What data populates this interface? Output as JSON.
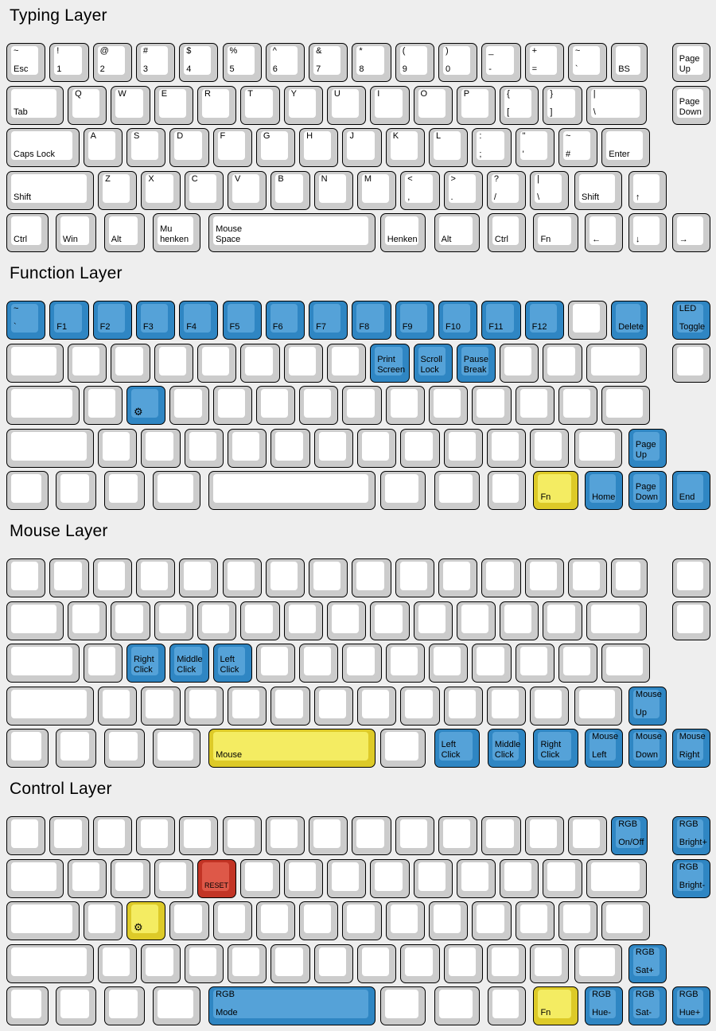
{
  "background": "#eeeeee",
  "icons": {
    "gear": "⚙"
  },
  "colors": {
    "w": {
      "base": "#cccccc",
      "cap": "#ffffff"
    },
    "b": {
      "base": "#2f86c3",
      "cap": "#55a2d8"
    },
    "y": {
      "base": "#ddca28",
      "cap": "#f4ec62"
    },
    "r": {
      "base": "#c23425",
      "cap": "#de5848"
    }
  },
  "layers": [
    {
      "title": "Typing Layer",
      "rows": [
        [
          {
            "c": "w",
            "t": "~",
            "b": "Esc"
          },
          {
            "c": "w",
            "t": "!",
            "b": "1"
          },
          {
            "c": "w",
            "t": "@",
            "b": "2"
          },
          {
            "c": "w",
            "t": "#",
            "b": "3"
          },
          {
            "c": "w",
            "t": "$",
            "b": "4"
          },
          {
            "c": "w",
            "t": "%",
            "b": "5"
          },
          {
            "c": "w",
            "t": "^",
            "b": "6"
          },
          {
            "c": "w",
            "t": "&",
            "b": "7"
          },
          {
            "c": "w",
            "t": "*",
            "b": "8"
          },
          {
            "c": "w",
            "t": "(",
            "b": "9"
          },
          {
            "c": "w",
            "t": ")",
            "b": "0"
          },
          {
            "c": "w",
            "t": "_",
            "b": "-"
          },
          {
            "c": "w",
            "t": "+",
            "b": "="
          },
          {
            "c": "w",
            "t": "~",
            "b": "`"
          },
          {
            "c": "w",
            "b": "BS"
          }
        ],
        [
          {
            "c": "w",
            "b": "Tab"
          },
          {
            "c": "w",
            "t": "Q"
          },
          {
            "c": "w",
            "t": "W"
          },
          {
            "c": "w",
            "t": "E"
          },
          {
            "c": "w",
            "t": "R"
          },
          {
            "c": "w",
            "t": "T"
          },
          {
            "c": "w",
            "t": "Y"
          },
          {
            "c": "w",
            "t": "U"
          },
          {
            "c": "w",
            "t": "I"
          },
          {
            "c": "w",
            "t": "O"
          },
          {
            "c": "w",
            "t": "P"
          },
          {
            "c": "w",
            "t": "{",
            "b": "["
          },
          {
            "c": "w",
            "t": "}",
            "b": "]"
          },
          {
            "c": "w",
            "t": "|",
            "b": "\\"
          }
        ],
        [
          {
            "c": "w",
            "b": "Caps Lock"
          },
          {
            "c": "w",
            "t": "A"
          },
          {
            "c": "w",
            "t": "S"
          },
          {
            "c": "w",
            "t": "D"
          },
          {
            "c": "w",
            "t": "F"
          },
          {
            "c": "w",
            "t": "G"
          },
          {
            "c": "w",
            "t": "H"
          },
          {
            "c": "w",
            "t": "J"
          },
          {
            "c": "w",
            "t": "K"
          },
          {
            "c": "w",
            "t": "L"
          },
          {
            "c": "w",
            "t": ":",
            "b": ";"
          },
          {
            "c": "w",
            "t": "\"",
            "b": "'"
          },
          {
            "c": "w",
            "t": "~",
            "b": "#"
          },
          {
            "c": "w",
            "b": "Enter"
          }
        ],
        [
          {
            "c": "w",
            "b": "Shift"
          },
          {
            "c": "w",
            "t": "Z"
          },
          {
            "c": "w",
            "t": "X"
          },
          {
            "c": "w",
            "t": "C"
          },
          {
            "c": "w",
            "t": "V"
          },
          {
            "c": "w",
            "t": "B"
          },
          {
            "c": "w",
            "t": "N"
          },
          {
            "c": "w",
            "t": "M"
          },
          {
            "c": "w",
            "t": "<",
            "b": ","
          },
          {
            "c": "w",
            "t": ">",
            "b": "."
          },
          {
            "c": "w",
            "t": "?",
            "b": "/"
          },
          {
            "c": "w",
            "t": "|",
            "b": "\\"
          },
          {
            "c": "w",
            "b": "Shift"
          },
          {
            "c": "w",
            "b": "↑"
          }
        ],
        [
          {
            "c": "w",
            "b": "Ctrl"
          },
          {
            "c": "w",
            "b": "Win"
          },
          {
            "c": "w",
            "b": "Alt"
          },
          {
            "c": "w",
            "b": "Mu\nhenken"
          },
          {
            "c": "w",
            "b": "Mouse\nSpace"
          },
          {
            "c": "w",
            "b": "Henken"
          },
          {
            "c": "w",
            "b": "Alt"
          },
          {
            "c": "w",
            "b": "Ctrl"
          },
          {
            "c": "w",
            "b": "Fn"
          },
          {
            "c": "w",
            "b": "←"
          },
          {
            "c": "w",
            "b": "↓"
          },
          {
            "c": "w",
            "b": "→"
          }
        ]
      ],
      "side": [
        {
          "c": "w",
          "b": "Page\nUp"
        },
        {
          "c": "w",
          "b": "Page\nDown"
        }
      ]
    },
    {
      "title": "Function Layer",
      "rows": [
        [
          {
            "c": "b",
            "t": "~",
            "b": "`"
          },
          {
            "c": "b",
            "b": "F1"
          },
          {
            "c": "b",
            "b": "F2"
          },
          {
            "c": "b",
            "b": "F3"
          },
          {
            "c": "b",
            "b": "F4"
          },
          {
            "c": "b",
            "b": "F5"
          },
          {
            "c": "b",
            "b": "F6"
          },
          {
            "c": "b",
            "b": "F7"
          },
          {
            "c": "b",
            "b": "F8"
          },
          {
            "c": "b",
            "b": "F9"
          },
          {
            "c": "b",
            "b": "F10"
          },
          {
            "c": "b",
            "b": "F11"
          },
          {
            "c": "b",
            "b": "F12"
          },
          {
            "c": "w"
          },
          {
            "c": "b",
            "b": "Delete"
          }
        ],
        [
          {
            "c": "w"
          },
          {
            "c": "w"
          },
          {
            "c": "w"
          },
          {
            "c": "w"
          },
          {
            "c": "w"
          },
          {
            "c": "w"
          },
          {
            "c": "w"
          },
          {
            "c": "w"
          },
          {
            "c": "b",
            "b": "Print\nScreen"
          },
          {
            "c": "b",
            "b": "Scroll\nLock"
          },
          {
            "c": "b",
            "b": "Pause\nBreak"
          },
          {
            "c": "w"
          },
          {
            "c": "w"
          },
          {
            "c": "w"
          }
        ],
        [
          {
            "c": "w"
          },
          {
            "c": "w"
          },
          {
            "c": "b",
            "ic": "gear"
          },
          {
            "c": "w"
          },
          {
            "c": "w"
          },
          {
            "c": "w"
          },
          {
            "c": "w"
          },
          {
            "c": "w"
          },
          {
            "c": "w"
          },
          {
            "c": "w"
          },
          {
            "c": "w"
          },
          {
            "c": "w"
          },
          {
            "c": "w"
          },
          {
            "c": "w"
          }
        ],
        [
          {
            "c": "w"
          },
          {
            "c": "w"
          },
          {
            "c": "w"
          },
          {
            "c": "w"
          },
          {
            "c": "w"
          },
          {
            "c": "w"
          },
          {
            "c": "w"
          },
          {
            "c": "w"
          },
          {
            "c": "w"
          },
          {
            "c": "w"
          },
          {
            "c": "w"
          },
          {
            "c": "w"
          },
          {
            "c": "w"
          },
          {
            "c": "b",
            "b": "Page\nUp"
          }
        ],
        [
          {
            "c": "w"
          },
          {
            "c": "w"
          },
          {
            "c": "w"
          },
          {
            "c": "w"
          },
          {
            "c": "w"
          },
          {
            "c": "w"
          },
          {
            "c": "w"
          },
          {
            "c": "w"
          },
          {
            "c": "y",
            "b": "Fn"
          },
          {
            "c": "b",
            "b": "Home"
          },
          {
            "c": "b",
            "b": "Page\nDown"
          },
          {
            "c": "b",
            "b": "End"
          }
        ]
      ],
      "side": [
        {
          "c": "b",
          "t": "LED",
          "b": "Toggle"
        },
        {
          "c": "w"
        }
      ]
    },
    {
      "title": "Mouse Layer",
      "rows": [
        [
          {
            "c": "w"
          },
          {
            "c": "w"
          },
          {
            "c": "w"
          },
          {
            "c": "w"
          },
          {
            "c": "w"
          },
          {
            "c": "w"
          },
          {
            "c": "w"
          },
          {
            "c": "w"
          },
          {
            "c": "w"
          },
          {
            "c": "w"
          },
          {
            "c": "w"
          },
          {
            "c": "w"
          },
          {
            "c": "w"
          },
          {
            "c": "w"
          },
          {
            "c": "w"
          }
        ],
        [
          {
            "c": "w"
          },
          {
            "c": "w"
          },
          {
            "c": "w"
          },
          {
            "c": "w"
          },
          {
            "c": "w"
          },
          {
            "c": "w"
          },
          {
            "c": "w"
          },
          {
            "c": "w"
          },
          {
            "c": "w"
          },
          {
            "c": "w"
          },
          {
            "c": "w"
          },
          {
            "c": "w"
          },
          {
            "c": "w"
          },
          {
            "c": "w"
          }
        ],
        [
          {
            "c": "w"
          },
          {
            "c": "w"
          },
          {
            "c": "b",
            "b": "Right\nClick"
          },
          {
            "c": "b",
            "b": "Middle\nClick"
          },
          {
            "c": "b",
            "b": "Left\nClick"
          },
          {
            "c": "w"
          },
          {
            "c": "w"
          },
          {
            "c": "w"
          },
          {
            "c": "w"
          },
          {
            "c": "w"
          },
          {
            "c": "w"
          },
          {
            "c": "w"
          },
          {
            "c": "w"
          },
          {
            "c": "w"
          }
        ],
        [
          {
            "c": "w"
          },
          {
            "c": "w"
          },
          {
            "c": "w"
          },
          {
            "c": "w"
          },
          {
            "c": "w"
          },
          {
            "c": "w"
          },
          {
            "c": "w"
          },
          {
            "c": "w"
          },
          {
            "c": "w"
          },
          {
            "c": "w"
          },
          {
            "c": "w"
          },
          {
            "c": "w"
          },
          {
            "c": "w"
          },
          {
            "c": "b",
            "t": "Mouse",
            "b": "Up"
          }
        ],
        [
          {
            "c": "w"
          },
          {
            "c": "w"
          },
          {
            "c": "w"
          },
          {
            "c": "w"
          },
          {
            "c": "y",
            "b": "Mouse"
          },
          {
            "c": "w"
          },
          {
            "c": "b",
            "b": "Left\nClick"
          },
          {
            "c": "b",
            "b": "Middle\nClick"
          },
          {
            "c": "b",
            "b": "Right\nClick"
          },
          {
            "c": "b",
            "t": "Mouse",
            "b": "Left"
          },
          {
            "c": "b",
            "t": "Mouse",
            "b": "Down"
          },
          {
            "c": "b",
            "t": "Mouse",
            "b": "Right"
          }
        ]
      ],
      "side": [
        {
          "c": "w"
        },
        {
          "c": "w"
        }
      ]
    },
    {
      "title": "Control Layer",
      "rows": [
        [
          {
            "c": "w"
          },
          {
            "c": "w"
          },
          {
            "c": "w"
          },
          {
            "c": "w"
          },
          {
            "c": "w"
          },
          {
            "c": "w"
          },
          {
            "c": "w"
          },
          {
            "c": "w"
          },
          {
            "c": "w"
          },
          {
            "c": "w"
          },
          {
            "c": "w"
          },
          {
            "c": "w"
          },
          {
            "c": "w"
          },
          {
            "c": "w"
          },
          {
            "c": "b",
            "t": "RGB",
            "b": "On/Off"
          }
        ],
        [
          {
            "c": "w"
          },
          {
            "c": "w"
          },
          {
            "c": "w"
          },
          {
            "c": "w"
          },
          {
            "c": "r",
            "b": "RESET",
            "s": 9
          },
          {
            "c": "w"
          },
          {
            "c": "w"
          },
          {
            "c": "w"
          },
          {
            "c": "w"
          },
          {
            "c": "w"
          },
          {
            "c": "w"
          },
          {
            "c": "w"
          },
          {
            "c": "w"
          },
          {
            "c": "w"
          }
        ],
        [
          {
            "c": "w"
          },
          {
            "c": "w"
          },
          {
            "c": "y",
            "ic": "gear"
          },
          {
            "c": "w"
          },
          {
            "c": "w"
          },
          {
            "c": "w"
          },
          {
            "c": "w"
          },
          {
            "c": "w"
          },
          {
            "c": "w"
          },
          {
            "c": "w"
          },
          {
            "c": "w"
          },
          {
            "c": "w"
          },
          {
            "c": "w"
          },
          {
            "c": "w"
          }
        ],
        [
          {
            "c": "w"
          },
          {
            "c": "w"
          },
          {
            "c": "w"
          },
          {
            "c": "w"
          },
          {
            "c": "w"
          },
          {
            "c": "w"
          },
          {
            "c": "w"
          },
          {
            "c": "w"
          },
          {
            "c": "w"
          },
          {
            "c": "w"
          },
          {
            "c": "w"
          },
          {
            "c": "w"
          },
          {
            "c": "w"
          },
          {
            "c": "b",
            "t": "RGB",
            "b": "Sat+"
          }
        ],
        [
          {
            "c": "w"
          },
          {
            "c": "w"
          },
          {
            "c": "w"
          },
          {
            "c": "w"
          },
          {
            "c": "b",
            "t": "RGB",
            "b": "Mode"
          },
          {
            "c": "w"
          },
          {
            "c": "w"
          },
          {
            "c": "w"
          },
          {
            "c": "y",
            "b": "Fn"
          },
          {
            "c": "b",
            "t": "RGB",
            "b": "Hue-"
          },
          {
            "c": "b",
            "t": "RGB",
            "b": "Sat-"
          },
          {
            "c": "b",
            "t": "RGB",
            "b": "Hue+"
          }
        ]
      ],
      "side": [
        {
          "c": "b",
          "t": "RGB",
          "b": "Bright+"
        },
        {
          "c": "b",
          "t": "RGB",
          "b": "Bright-"
        }
      ]
    }
  ]
}
